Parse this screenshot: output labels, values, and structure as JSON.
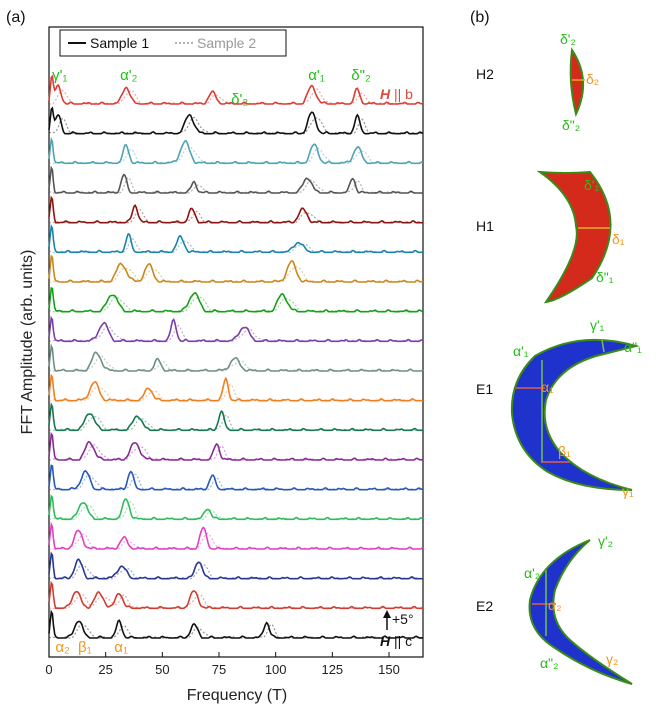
{
  "panels": {
    "a": "(a)",
    "b": "(b)"
  },
  "chart_data": {
    "type": "line",
    "title": "",
    "xlabel": "Frequency (T)",
    "ylabel": "FFT Amplitude (arb. units)",
    "xlim": [
      0,
      165
    ],
    "x_ticks": [
      0,
      25,
      50,
      75,
      100,
      125,
      150
    ],
    "legend": {
      "placement": "top-left",
      "sample1": "Sample 1",
      "sample2": "Sample 2"
    },
    "field_top": {
      "symbol": "H",
      "rest": " || b",
      "color": "#d94a3a"
    },
    "field_bottom": {
      "symbol": "H",
      "rest": " || c",
      "color": "#111111"
    },
    "step_label": "+5°",
    "series_colors": [
      "#111111",
      "#cf3c30",
      "#283890",
      "#e23fbf",
      "#2fbd5b",
      "#2759b8",
      "#8a2996",
      "#16784f",
      "#f07f1e",
      "#6f9080",
      "#7a3fa6",
      "#16a016",
      "#c9871d",
      "#1b83ab",
      "#8a1512",
      "#555555",
      "#4fa3b3",
      "#111111",
      "#dd3b34"
    ],
    "peaks_top": [
      {
        "label": "γ'₁",
        "x": 4,
        "class": "green"
      },
      {
        "label": "α'₂",
        "x": 34,
        "class": "green"
      },
      {
        "label": "δ'₂",
        "x": 83,
        "class": "green"
      },
      {
        "label": "α'₁",
        "x": 117,
        "class": "green"
      },
      {
        "label": "δ\"₂",
        "x": 136,
        "class": "darkgreen"
      }
    ],
    "peaks_bottom": [
      {
        "label": "α₂",
        "x": 5
      },
      {
        "label": "β₁",
        "x": 15
      },
      {
        "label": "α₁",
        "x": 31
      }
    ],
    "traces_peak_centers": [
      {
        "angle_index": 0,
        "peaks": [
          13,
          31,
          64,
          96
        ]
      },
      {
        "angle_index": 1,
        "peaks": [
          12,
          22,
          31,
          64
        ]
      },
      {
        "angle_index": 2,
        "peaks": [
          13,
          32,
          66
        ]
      },
      {
        "angle_index": 3,
        "peaks": [
          13,
          33,
          68
        ]
      },
      {
        "angle_index": 4,
        "peaks": [
          15,
          34,
          70
        ]
      },
      {
        "angle_index": 5,
        "peaks": [
          16,
          36,
          72
        ]
      },
      {
        "angle_index": 6,
        "peaks": [
          18,
          38,
          74
        ]
      },
      {
        "angle_index": 7,
        "peaks": [
          18,
          39,
          76
        ]
      },
      {
        "angle_index": 8,
        "peaks": [
          20,
          44,
          78
        ]
      },
      {
        "angle_index": 9,
        "peaks": [
          21,
          48,
          82
        ]
      },
      {
        "angle_index": 10,
        "peaks": [
          24,
          55,
          86
        ]
      },
      {
        "angle_index": 11,
        "peaks": [
          28,
          64,
          103
        ]
      },
      {
        "angle_index": 12,
        "peaks": [
          32,
          44,
          107
        ]
      },
      {
        "angle_index": 13,
        "peaks": [
          35,
          58,
          110
        ]
      },
      {
        "angle_index": 14,
        "peaks": [
          38,
          63,
          112
        ]
      },
      {
        "angle_index": 15,
        "peaks": [
          33,
          64,
          114,
          134
        ]
      },
      {
        "angle_index": 16,
        "peaks": [
          34,
          60,
          117,
          136
        ]
      },
      {
        "angle_index": 17,
        "peaks": [
          4,
          62,
          116,
          136
        ]
      },
      {
        "angle_index": 18,
        "peaks": [
          4,
          34,
          72,
          116,
          136
        ]
      }
    ]
  },
  "fermi_surfaces": [
    {
      "name": "H2",
      "labels": [
        {
          "text": "δ'₂",
          "color": "green"
        },
        {
          "text": "δ₂",
          "color": "orange"
        },
        {
          "text": "δ\"₂",
          "color": "darkgreen"
        }
      ]
    },
    {
      "name": "H1",
      "labels": [
        {
          "text": "δ'₁",
          "color": "green"
        },
        {
          "text": "δ₁",
          "color": "orange"
        },
        {
          "text": "δ\"₁",
          "color": "darkgreen"
        }
      ]
    },
    {
      "name": "E1",
      "labels": [
        {
          "text": "γ'₁",
          "color": "green"
        },
        {
          "text": "α'₁",
          "color": "green"
        },
        {
          "text": "α\"₁",
          "color": "darkgreen"
        },
        {
          "text": "α₁",
          "color": "orange"
        },
        {
          "text": "β₁",
          "color": "orange"
        },
        {
          "text": "γ₁",
          "color": "orange"
        }
      ]
    },
    {
      "name": "E2",
      "labels": [
        {
          "text": "γ'₂",
          "color": "green"
        },
        {
          "text": "α'₂",
          "color": "green"
        },
        {
          "text": "α₂",
          "color": "orange"
        },
        {
          "text": "α\"₂",
          "color": "darkgreen"
        },
        {
          "text": "γ₂",
          "color": "orange"
        }
      ]
    }
  ]
}
